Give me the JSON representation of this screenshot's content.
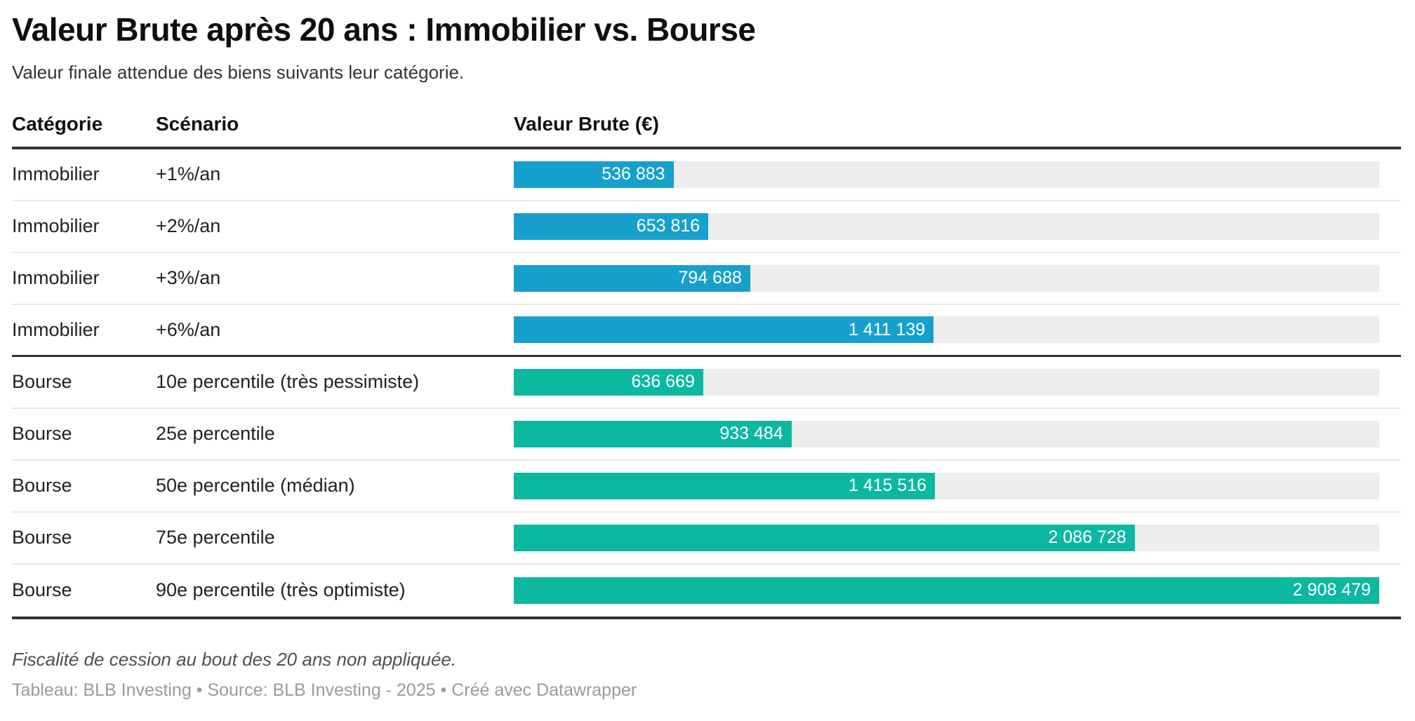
{
  "header": {
    "title": "Valeur Brute après 20 ans : Immobilier vs. Bourse",
    "subtitle": "Valeur finale attendue des biens suivants leur catégorie."
  },
  "table": {
    "columns": [
      "Catégorie",
      "Scénario",
      "Valeur Brute (€)"
    ]
  },
  "chart_data": {
    "type": "bar",
    "title": "Valeur Brute après 20 ans : Immobilier vs. Bourse",
    "subtitle": "Valeur finale attendue des biens suivants leur catégorie.",
    "value_column": "Valeur Brute (€)",
    "orientation": "horizontal",
    "xlim": [
      0,
      2908479
    ],
    "max_value": 2908479,
    "grid": false,
    "legend": "none",
    "colors": {
      "Immobilier": "#18a0cd",
      "Bourse": "#0db8a1",
      "track": "#ededed",
      "bar_label_text": "#ffffff"
    },
    "rows": [
      {
        "category": "Immobilier",
        "scenario": "+1%/an",
        "value": 536883,
        "label": "536 883"
      },
      {
        "category": "Immobilier",
        "scenario": "+2%/an",
        "value": 653816,
        "label": "653 816"
      },
      {
        "category": "Immobilier",
        "scenario": "+3%/an",
        "value": 794688,
        "label": "794 688"
      },
      {
        "category": "Immobilier",
        "scenario": "+6%/an",
        "value": 1411139,
        "label": "1 411 139"
      },
      {
        "category": "Bourse",
        "scenario": "10e percentile (très pessimiste)",
        "value": 636669,
        "label": "636 669"
      },
      {
        "category": "Bourse",
        "scenario": "25e percentile",
        "value": 933484,
        "label": "933 484"
      },
      {
        "category": "Bourse",
        "scenario": "50e percentile (médian)",
        "value": 1415516,
        "label": "1 415 516"
      },
      {
        "category": "Bourse",
        "scenario": "75e percentile",
        "value": 2086728,
        "label": "2 086 728"
      },
      {
        "category": "Bourse",
        "scenario": "90e percentile (très optimiste)",
        "value": 2908479,
        "label": "2 908 479"
      }
    ]
  },
  "footer": {
    "note": "Fiscalité de cession au bout des 20 ans non appliquée.",
    "credit": "Tableau: BLB Investing • Source: BLB Investing - 2025 • Créé avec Datawrapper"
  }
}
